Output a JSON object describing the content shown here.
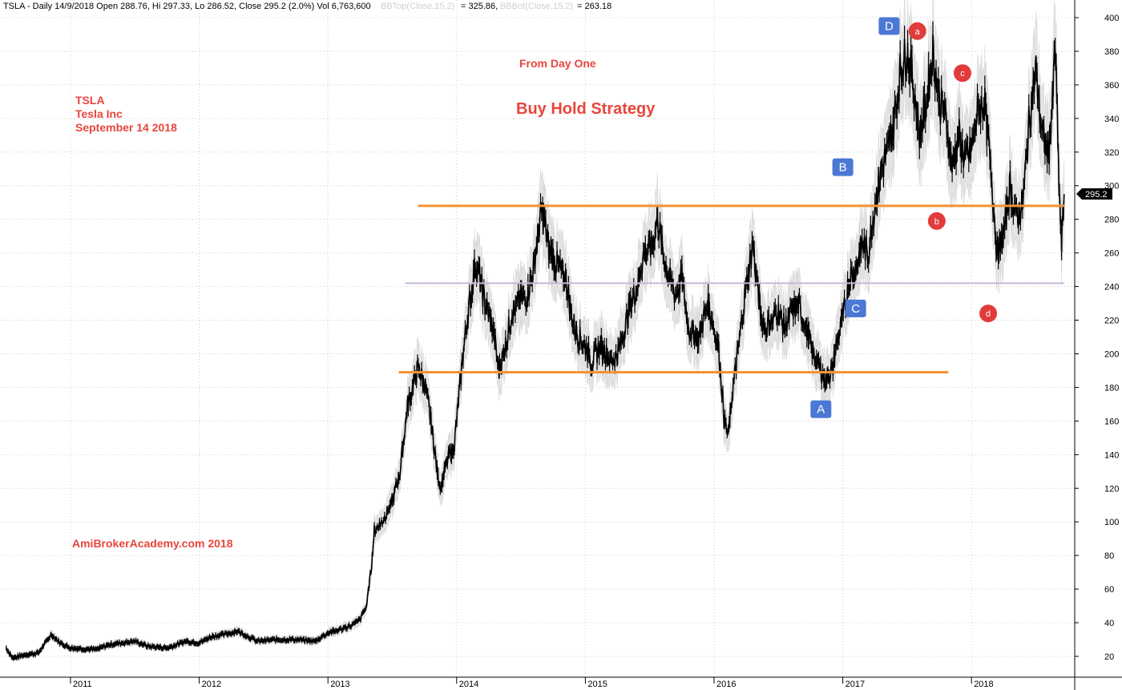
{
  "header": {
    "part1": "TSLA - Daily 14/9/2018 Open 288.76, Hi 297.33, Lo 286.52, Close 295.2 (2.0%) Vol 6,763,600",
    "bbtop_label": "BBTop(Close,15,2)",
    "bbtop_value": "= 325.86,",
    "bbbot_label": "BBBot(Close,15,2)",
    "bbbot_value": "= 263.18"
  },
  "annotations": {
    "ticker": "TSLA",
    "company": "Tesla Inc",
    "date": "September 14 2018",
    "from_day_one": "From Day One",
    "strategy": "Buy Hold Strategy",
    "watermark": "AmiBrokerAcademy.com  2018"
  },
  "colors": {
    "price": "#000000",
    "band": "#e4e4e4",
    "resistance": "#f39331",
    "mid_line": "#c9b6d9",
    "box_label": "#4a78d4",
    "circle_label": "#e23b3b",
    "annotation_text": "#e8453c",
    "grid": "#cccccc"
  },
  "last_price_label": "295.2",
  "chart_data": {
    "type": "line",
    "symbol": "TSLA",
    "ylim": [
      10,
      405
    ],
    "xlim": [
      2010.5,
      2018.72
    ],
    "y_ticks": [
      20,
      40,
      60,
      80,
      100,
      120,
      140,
      160,
      180,
      200,
      220,
      240,
      260,
      280,
      300,
      320,
      340,
      360,
      380,
      400
    ],
    "x_ticks": [
      {
        "label": "2011",
        "x": 2011.0
      },
      {
        "label": "2012",
        "x": 2012.0
      },
      {
        "label": "2013",
        "x": 2013.0
      },
      {
        "label": "2014",
        "x": 2014.0
      },
      {
        "label": "2015",
        "x": 2015.0
      },
      {
        "label": "2016",
        "x": 2016.0
      },
      {
        "label": "2017",
        "x": 2017.0
      },
      {
        "label": "2018",
        "x": 2018.0
      }
    ],
    "grid": true,
    "series": [
      {
        "style": "price",
        "points": [
          [
            2010.5,
            25
          ],
          [
            2010.55,
            19
          ],
          [
            2010.65,
            21
          ],
          [
            2010.75,
            22
          ],
          [
            2010.85,
            33
          ],
          [
            2010.92,
            28
          ],
          [
            2011.0,
            25
          ],
          [
            2011.2,
            24
          ],
          [
            2011.3,
            27
          ],
          [
            2011.4,
            28
          ],
          [
            2011.5,
            29
          ],
          [
            2011.6,
            26
          ],
          [
            2011.75,
            25
          ],
          [
            2011.9,
            29
          ],
          [
            2012.0,
            28
          ],
          [
            2012.1,
            32
          ],
          [
            2012.2,
            33
          ],
          [
            2012.3,
            35
          ],
          [
            2012.45,
            29
          ],
          [
            2012.6,
            30
          ],
          [
            2012.75,
            30
          ],
          [
            2012.9,
            29
          ],
          [
            2013.0,
            34
          ],
          [
            2013.1,
            36
          ],
          [
            2013.2,
            39
          ],
          [
            2013.25,
            42
          ],
          [
            2013.3,
            50
          ],
          [
            2013.34,
            75
          ],
          [
            2013.36,
            95
          ],
          [
            2013.42,
            100
          ],
          [
            2013.5,
            112
          ],
          [
            2013.56,
            130
          ],
          [
            2013.62,
            170
          ],
          [
            2013.66,
            180
          ],
          [
            2013.7,
            192
          ],
          [
            2013.76,
            180
          ],
          [
            2013.8,
            160
          ],
          [
            2013.85,
            130
          ],
          [
            2013.88,
            120
          ],
          [
            2013.92,
            135
          ],
          [
            2013.98,
            145
          ],
          [
            2014.05,
            200
          ],
          [
            2014.1,
            230
          ],
          [
            2014.15,
            255
          ],
          [
            2014.22,
            230
          ],
          [
            2014.28,
            215
          ],
          [
            2014.33,
            190
          ],
          [
            2014.38,
            205
          ],
          [
            2014.43,
            225
          ],
          [
            2014.48,
            230
          ],
          [
            2014.55,
            235
          ],
          [
            2014.6,
            252
          ],
          [
            2014.66,
            285
          ],
          [
            2014.72,
            262
          ],
          [
            2014.8,
            250
          ],
          [
            2014.85,
            245
          ],
          [
            2014.9,
            220
          ],
          [
            2014.95,
            210
          ],
          [
            2015.0,
            205
          ],
          [
            2015.05,
            195
          ],
          [
            2015.12,
            205
          ],
          [
            2015.2,
            195
          ],
          [
            2015.25,
            200
          ],
          [
            2015.32,
            220
          ],
          [
            2015.4,
            240
          ],
          [
            2015.45,
            258
          ],
          [
            2015.52,
            265
          ],
          [
            2015.56,
            282
          ],
          [
            2015.6,
            260
          ],
          [
            2015.65,
            245
          ],
          [
            2015.7,
            235
          ],
          [
            2015.75,
            245
          ],
          [
            2015.8,
            215
          ],
          [
            2015.88,
            210
          ],
          [
            2015.95,
            230
          ],
          [
            2016.0,
            215
          ],
          [
            2016.04,
            200
          ],
          [
            2016.08,
            160
          ],
          [
            2016.11,
            150
          ],
          [
            2016.14,
            175
          ],
          [
            2016.2,
            210
          ],
          [
            2016.25,
            240
          ],
          [
            2016.3,
            265
          ],
          [
            2016.36,
            225
          ],
          [
            2016.4,
            215
          ],
          [
            2016.45,
            220
          ],
          [
            2016.5,
            225
          ],
          [
            2016.55,
            215
          ],
          [
            2016.6,
            225
          ],
          [
            2016.65,
            230
          ],
          [
            2016.7,
            220
          ],
          [
            2016.75,
            205
          ],
          [
            2016.8,
            195
          ],
          [
            2016.86,
            185
          ],
          [
            2016.92,
            190
          ],
          [
            2016.96,
            210
          ],
          [
            2017.0,
            220
          ],
          [
            2017.05,
            245
          ],
          [
            2017.1,
            250
          ],
          [
            2017.15,
            265
          ],
          [
            2017.2,
            260
          ],
          [
            2017.25,
            290
          ],
          [
            2017.3,
            310
          ],
          [
            2017.35,
            320
          ],
          [
            2017.4,
            340
          ],
          [
            2017.45,
            370
          ],
          [
            2017.5,
            380
          ],
          [
            2017.55,
            360
          ],
          [
            2017.6,
            330
          ],
          [
            2017.65,
            350
          ],
          [
            2017.7,
            380
          ],
          [
            2017.75,
            350
          ],
          [
            2017.8,
            340
          ],
          [
            2017.85,
            310
          ],
          [
            2017.9,
            330
          ],
          [
            2017.95,
            315
          ],
          [
            2018.0,
            320
          ],
          [
            2018.05,
            345
          ],
          [
            2018.1,
            350
          ],
          [
            2018.15,
            310
          ],
          [
            2018.2,
            260
          ],
          [
            2018.25,
            270
          ],
          [
            2018.3,
            300
          ],
          [
            2018.35,
            280
          ],
          [
            2018.4,
            290
          ],
          [
            2018.45,
            340
          ],
          [
            2018.5,
            370
          ],
          [
            2018.55,
            330
          ],
          [
            2018.6,
            320
          ],
          [
            2018.63,
            350
          ],
          [
            2018.65,
            385
          ],
          [
            2018.68,
            300
          ],
          [
            2018.7,
            265
          ],
          [
            2018.72,
            295
          ]
        ]
      }
    ],
    "horizontal_lines": [
      {
        "y": 288,
        "x_from": 2013.7,
        "x_to": 2018.72,
        "style": "resistance"
      },
      {
        "y": 242,
        "x_from": 2013.6,
        "x_to": 2018.72,
        "style": "mid"
      },
      {
        "y": 189,
        "x_from": 2013.55,
        "x_to": 2017.82,
        "style": "resistance"
      }
    ],
    "point_labels": [
      {
        "label": "D",
        "x": 2017.36,
        "y": 395,
        "shape": "box"
      },
      {
        "label": "a",
        "x": 2017.58,
        "y": 392,
        "shape": "circle"
      },
      {
        "label": "c",
        "x": 2017.93,
        "y": 367,
        "shape": "circle"
      },
      {
        "label": "B",
        "x": 2017.0,
        "y": 311,
        "shape": "box"
      },
      {
        "label": "b",
        "x": 2017.73,
        "y": 279,
        "shape": "circle"
      },
      {
        "label": "C",
        "x": 2017.1,
        "y": 227,
        "shape": "box"
      },
      {
        "label": "d",
        "x": 2018.13,
        "y": 224,
        "shape": "circle"
      },
      {
        "label": "A",
        "x": 2016.83,
        "y": 167,
        "shape": "box"
      }
    ]
  }
}
